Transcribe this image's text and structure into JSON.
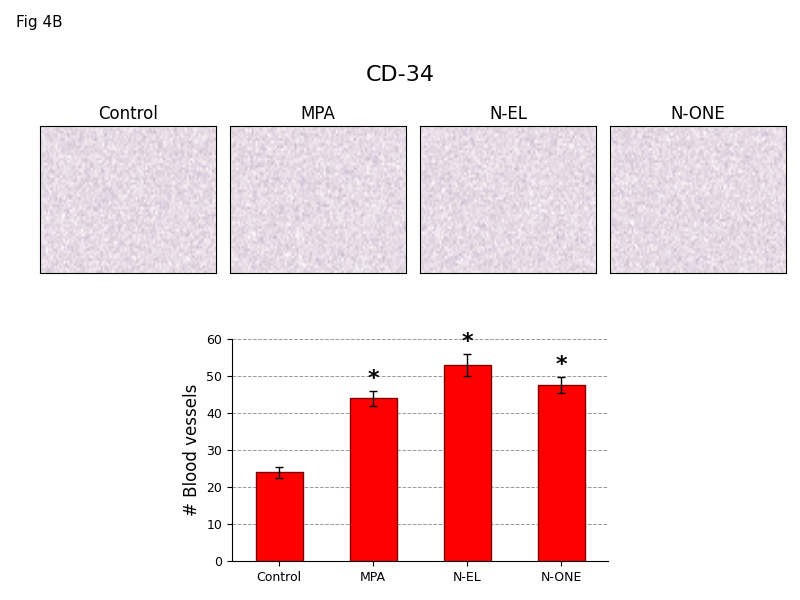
{
  "figure_label": "Fig 4B",
  "panel_title": "CD-34",
  "panel_labels": [
    "Control",
    "MPA",
    "N-EL",
    "N-ONE"
  ],
  "chart_data": {
    "type": "bar",
    "categories": [
      "Control",
      "MPA",
      "N-EL",
      "N-ONE"
    ],
    "values": [
      24,
      44,
      53,
      47.5
    ],
    "errors": [
      1.5,
      2,
      3,
      2.2
    ],
    "color": "#ff0000",
    "y_label": "# Blood vessels",
    "ylim": [
      0,
      60
    ],
    "yticks": [
      0,
      10,
      20,
      30,
      40,
      50,
      60
    ],
    "grid": true,
    "annotations": [
      {
        "category": "MPA",
        "text": "*"
      },
      {
        "category": "N-EL",
        "text": "*"
      },
      {
        "category": "N-ONE",
        "text": "*"
      }
    ]
  }
}
